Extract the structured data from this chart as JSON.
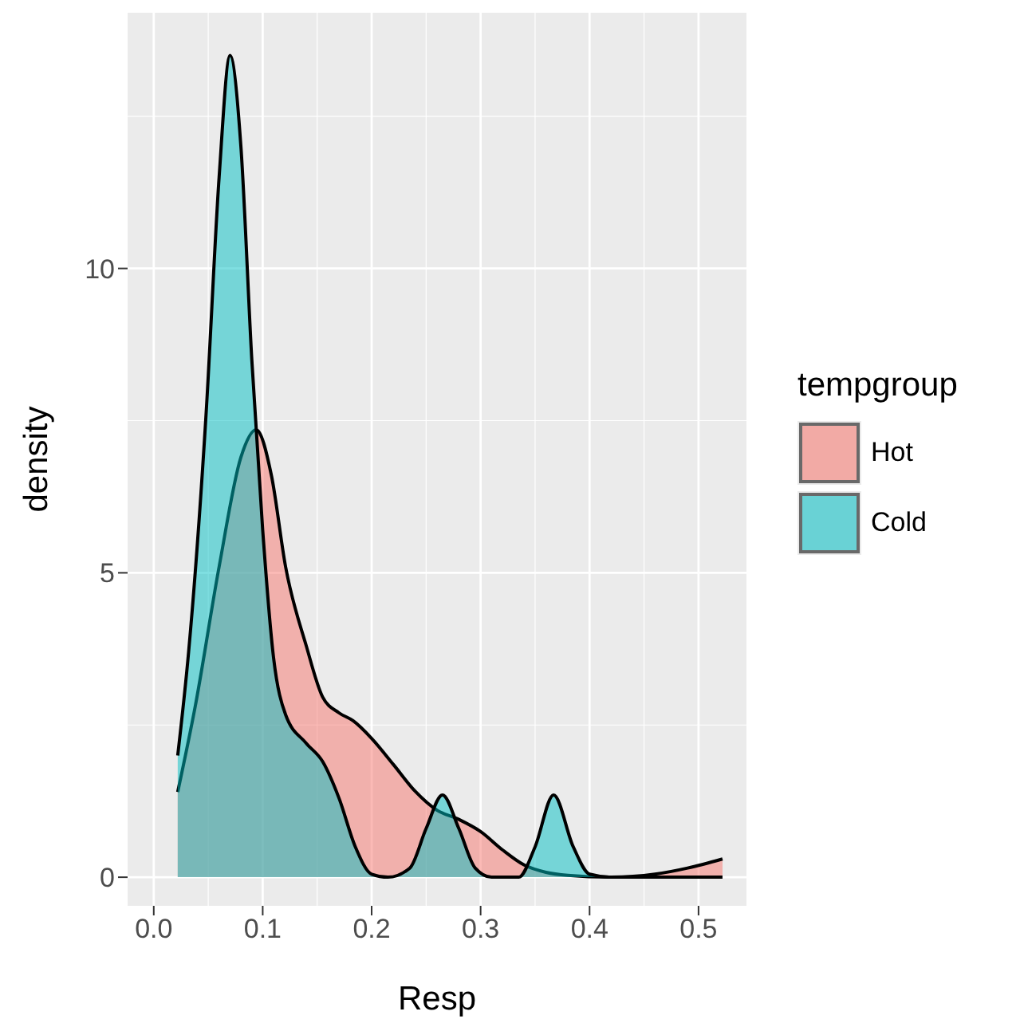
{
  "chart_data": {
    "type": "area",
    "xlabel": "Resp",
    "ylabel": "density",
    "legend_title": "tempgroup",
    "legend": "right",
    "grid": true,
    "xlim": [
      -0.024,
      0.544
    ],
    "ylim": [
      -0.47,
      14.2
    ],
    "xticks": [
      {
        "value": 0,
        "label": "0.0"
      },
      0.1,
      0.2,
      0.3,
      0.4,
      0.5
    ],
    "yticks": [
      0,
      5,
      10
    ],
    "series": [
      {
        "name": "Hot",
        "color": "#f8766d",
        "x": [
          0.022,
          0.038,
          0.06,
          0.08,
          0.094,
          0.108,
          0.121,
          0.14,
          0.155,
          0.17,
          0.183,
          0.2,
          0.22,
          0.24,
          0.26,
          0.28,
          0.3,
          0.32,
          0.34,
          0.36,
          0.38,
          0.42,
          0.46,
          0.49,
          0.522
        ],
        "values": [
          1.4,
          2.8,
          5.1,
          6.9,
          7.35,
          6.6,
          5.1,
          3.8,
          2.96,
          2.7,
          2.57,
          2.28,
          1.85,
          1.41,
          1.1,
          0.95,
          0.75,
          0.45,
          0.2,
          0.08,
          0.03,
          0,
          0.05,
          0.15,
          0.3
        ]
      },
      {
        "name": "Cold",
        "color": "#00bfc4",
        "x": [
          0.022,
          0.032,
          0.048,
          0.06,
          0.07,
          0.08,
          0.09,
          0.1,
          0.11,
          0.121,
          0.14,
          0.155,
          0.17,
          0.185,
          0.2,
          0.215,
          0.235,
          0.25,
          0.265,
          0.28,
          0.295,
          0.31,
          0.335,
          0.35,
          0.367,
          0.385,
          0.4,
          0.42,
          0.522
        ],
        "values": [
          2.0,
          3.7,
          7.6,
          11.5,
          13.5,
          12,
          8.5,
          5.7,
          3.6,
          2.67,
          2.2,
          1.9,
          1.3,
          0.5,
          0.05,
          0,
          0.15,
          0.8,
          1.35,
          0.8,
          0.15,
          0,
          0,
          0.5,
          1.35,
          0.5,
          0.05,
          0,
          0
        ]
      }
    ]
  }
}
